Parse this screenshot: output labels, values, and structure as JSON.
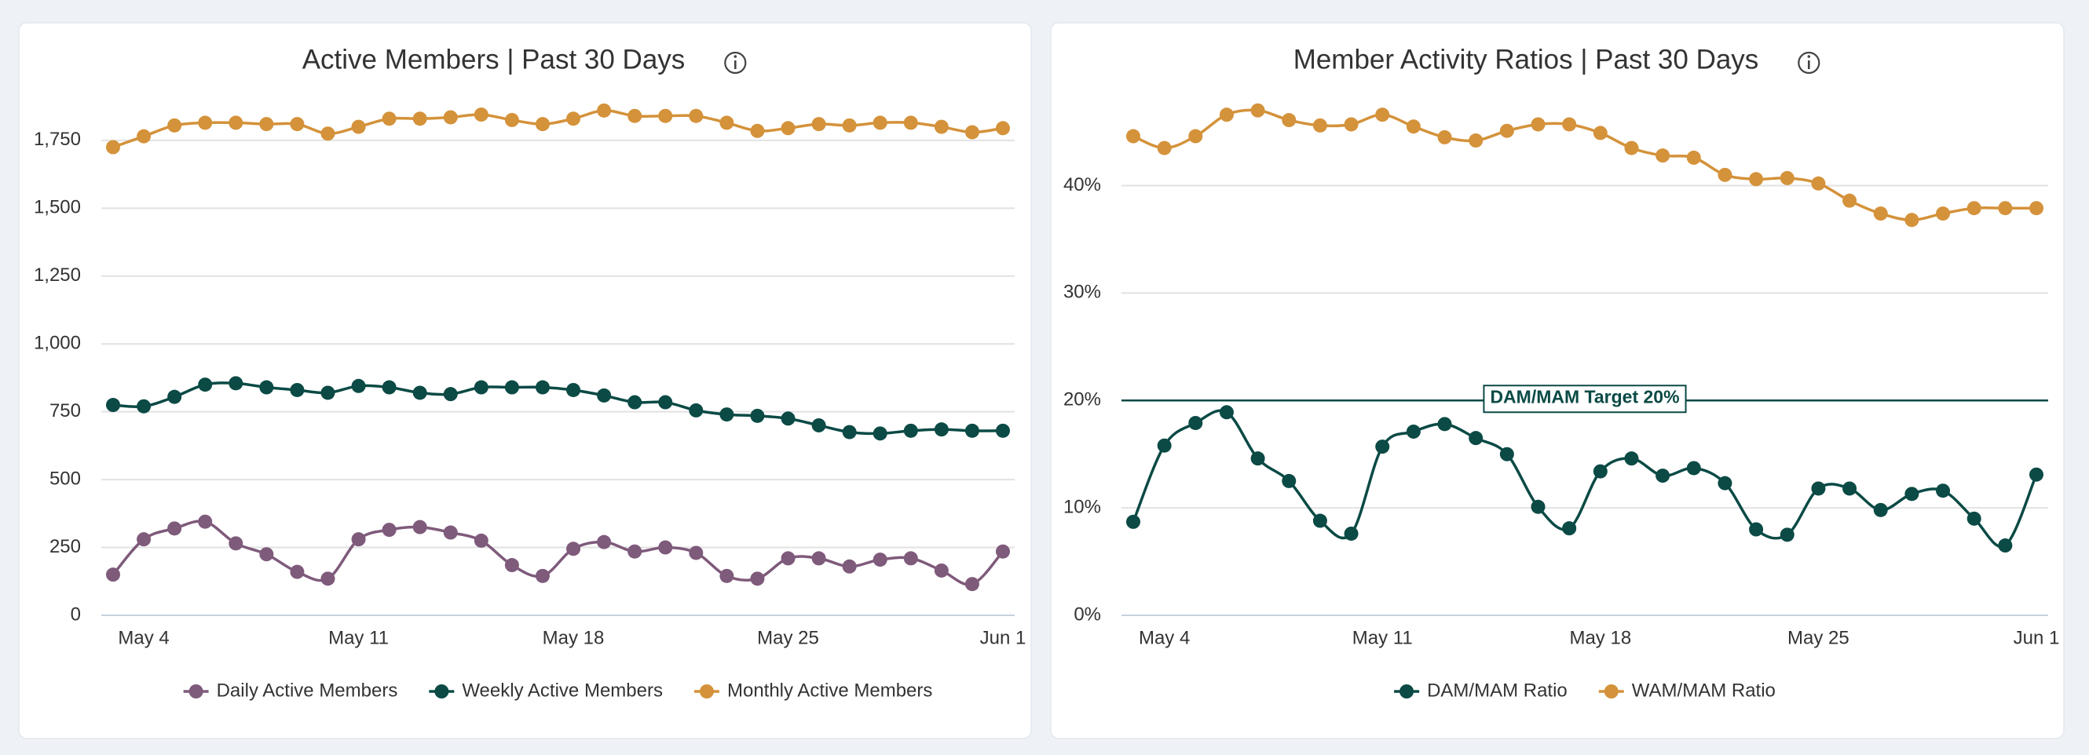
{
  "chart_data": [
    {
      "type": "line",
      "title": "Active Members | Past 30 Days",
      "categories": [
        null,
        "May 4",
        null,
        null,
        null,
        null,
        null,
        null,
        "May 11",
        null,
        null,
        null,
        null,
        null,
        null,
        "May 18",
        null,
        null,
        null,
        null,
        null,
        null,
        "May 25",
        null,
        null,
        null,
        null,
        null,
        null,
        "Jun 1"
      ],
      "series": [
        {
          "name": "Daily Active Members",
          "color": "#7e5a7b",
          "values": [
            150,
            280,
            320,
            345,
            265,
            225,
            160,
            135,
            280,
            315,
            325,
            305,
            275,
            185,
            145,
            245,
            270,
            235,
            250,
            230,
            145,
            135,
            210,
            210,
            180,
            205,
            210,
            165,
            115,
            235
          ]
        },
        {
          "name": "Weekly Active Members",
          "color": "#0b4a45",
          "values": [
            775,
            770,
            805,
            850,
            855,
            840,
            830,
            820,
            845,
            840,
            820,
            815,
            840,
            840,
            840,
            830,
            810,
            785,
            785,
            755,
            740,
            735,
            725,
            700,
            675,
            670,
            680,
            685,
            680,
            680
          ]
        },
        {
          "name": "Monthly Active Members",
          "color": "#d4923a",
          "values": [
            1725,
            1765,
            1805,
            1815,
            1815,
            1810,
            1810,
            1775,
            1800,
            1830,
            1830,
            1835,
            1845,
            1825,
            1810,
            1830,
            1860,
            1840,
            1840,
            1840,
            1815,
            1785,
            1795,
            1810,
            1805,
            1815,
            1815,
            1800,
            1780,
            1795
          ]
        }
      ],
      "ylim": [
        0,
        1900
      ],
      "yticks": [
        0,
        250,
        500,
        750,
        {
          "value": 1000,
          "label": "1,000"
        },
        {
          "value": 1250,
          "label": "1,250"
        },
        {
          "value": 1500,
          "label": "1,500"
        },
        {
          "value": 1750,
          "label": "1,750"
        }
      ],
      "grid": true,
      "legend": "bottom"
    },
    {
      "type": "line",
      "title": "Member Activity Ratios | Past 30 Days",
      "categories": [
        null,
        "May 4",
        null,
        null,
        null,
        null,
        null,
        null,
        "May 11",
        null,
        null,
        null,
        null,
        null,
        null,
        "May 18",
        null,
        null,
        null,
        null,
        null,
        null,
        "May 25",
        null,
        null,
        null,
        null,
        null,
        null,
        "Jun 1"
      ],
      "series": [
        {
          "name": "DAM/MAM Ratio",
          "color": "#0b4a45",
          "values": [
            8.7,
            15.8,
            17.9,
            18.9,
            14.6,
            12.5,
            8.8,
            7.6,
            15.7,
            17.1,
            17.8,
            16.5,
            15.0,
            10.1,
            8.1,
            13.4,
            14.6,
            13.0,
            13.7,
            12.3,
            8.0,
            7.5,
            11.8,
            11.8,
            9.8,
            11.3,
            11.6,
            9.0,
            6.5,
            13.1
          ]
        },
        {
          "name": "WAM/MAM Ratio",
          "color": "#d4923a",
          "values": [
            44.6,
            43.5,
            44.6,
            46.6,
            47.0,
            46.1,
            45.6,
            45.7,
            46.6,
            45.5,
            44.5,
            44.2,
            45.1,
            45.7,
            45.7,
            44.9,
            43.5,
            42.8,
            42.6,
            41.0,
            40.6,
            40.7,
            40.2,
            38.6,
            37.4,
            36.8,
            37.4,
            37.9,
            37.9,
            37.9
          ]
        }
      ],
      "ylim": [
        0,
        48
      ],
      "yticks": [
        {
          "value": 0,
          "label": "0%"
        },
        {
          "value": 10,
          "label": "10%"
        },
        {
          "value": 20,
          "label": "20%"
        },
        {
          "value": 30,
          "label": "30%"
        },
        {
          "value": 40,
          "label": "40%"
        }
      ],
      "grid": true,
      "legend": "bottom",
      "annotations": [
        {
          "y": 20,
          "text": "DAM/MAM Target 20%",
          "color": "#0b4a45"
        }
      ]
    }
  ]
}
